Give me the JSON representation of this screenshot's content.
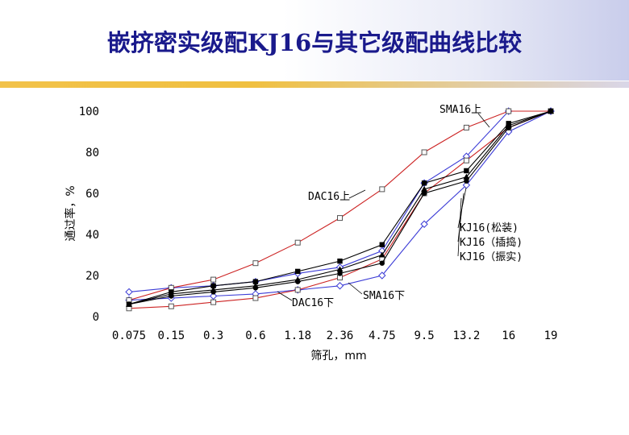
{
  "title": "嵌挤密实级配KJ16与其它级配曲线比较",
  "chart_data": {
    "type": "line",
    "title": "",
    "xlabel": "筛孔，mm",
    "ylabel": "通过率，%",
    "categories": [
      "0.075",
      "0.15",
      "0.3",
      "0.6",
      "1.18",
      "2.36",
      "4.75",
      "9.5",
      "13.2",
      "16",
      "19"
    ],
    "ylim": [
      0,
      100
    ],
    "yticks": [
      0,
      20,
      40,
      60,
      80,
      100
    ],
    "grid": false,
    "series": [
      {
        "name": "SMA16上",
        "color": "#3b3bd6",
        "marker": "diamond-open",
        "values": [
          12,
          14,
          15,
          17,
          21,
          24,
          32,
          65,
          78,
          100,
          100
        ]
      },
      {
        "name": "SMA16下",
        "color": "#3b3bd6",
        "marker": "diamond-open",
        "values": [
          8,
          9,
          10,
          11,
          13,
          15,
          20,
          45,
          64,
          90,
          100
        ]
      },
      {
        "name": "DAC16上",
        "color": "#cc2222",
        "marker": "square-open",
        "values": [
          8,
          14,
          18,
          26,
          36,
          48,
          62,
          80,
          92,
          100,
          100
        ]
      },
      {
        "name": "DAC16下",
        "color": "#cc2222",
        "marker": "square-open",
        "values": [
          4,
          5,
          7,
          9,
          13,
          19,
          28,
          60,
          76,
          92,
          100
        ]
      },
      {
        "name": "KJ16（松装）",
        "color": "#000000",
        "marker": "square-filled",
        "values": [
          6,
          12,
          15,
          17,
          22,
          27,
          35,
          65,
          71,
          94,
          100
        ]
      },
      {
        "name": "KJ16（插捣）",
        "color": "#000000",
        "marker": "triangle-filled",
        "values": [
          6,
          11,
          13,
          15,
          18,
          23,
          30,
          62,
          68,
          93,
          100
        ]
      },
      {
        "name": "KJ16（振实）",
        "color": "#000000",
        "marker": "circle-filled",
        "values": [
          6,
          10,
          12,
          14,
          17,
          21,
          26,
          60,
          66,
          92,
          100
        ]
      }
    ],
    "annotations": [
      {
        "text": "SMA16上"
      },
      {
        "text": "DAC16上"
      },
      {
        "text": "SMA16下"
      },
      {
        "text": "DAC16下"
      },
      {
        "text": "KJ16(松装)"
      },
      {
        "text": "KJ16（插捣)"
      },
      {
        "text": "KJ16（振实)"
      }
    ]
  }
}
